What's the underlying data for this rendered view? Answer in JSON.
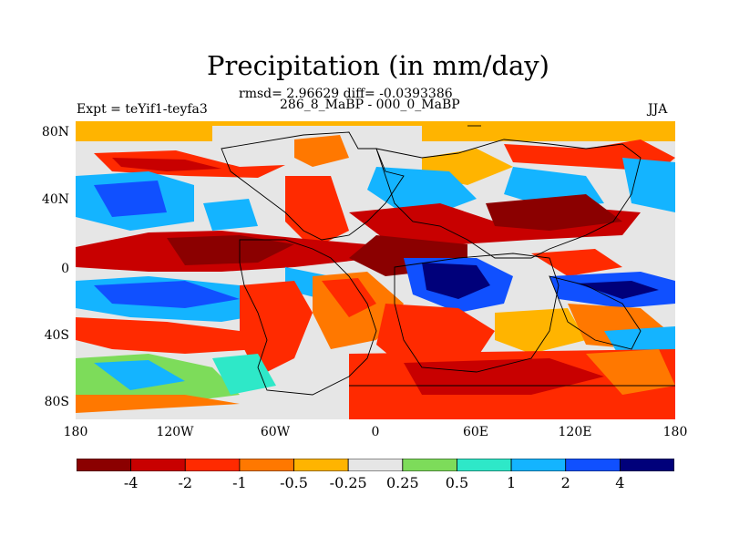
{
  "title": "Precipitation (in mm/day)",
  "stats": "rmsd= 2.96629 diff= -0.0393386",
  "period": "286_8_MaBP - 000_0_MaBP",
  "expt": "Expt = teYif1-teyfa3",
  "season": "JJA",
  "lat_labels": [
    "80N",
    "40N",
    "0",
    "40S",
    "80S"
  ],
  "lon_labels": [
    "180",
    "120W",
    "60W",
    "0",
    "60E",
    "120E",
    "180"
  ],
  "colorbar": {
    "colors": [
      "#8b0000",
      "#c80000",
      "#ff2a00",
      "#ff7800",
      "#ffb400",
      "#e6e6e6",
      "#7ddc5a",
      "#2ee8c8",
      "#14b4ff",
      "#1050ff",
      "#00007a"
    ],
    "labels": [
      "-4",
      "-2",
      "-1",
      "-0.5",
      "-0.25",
      "0.25",
      "0.5",
      "1",
      "2",
      "4"
    ]
  }
}
